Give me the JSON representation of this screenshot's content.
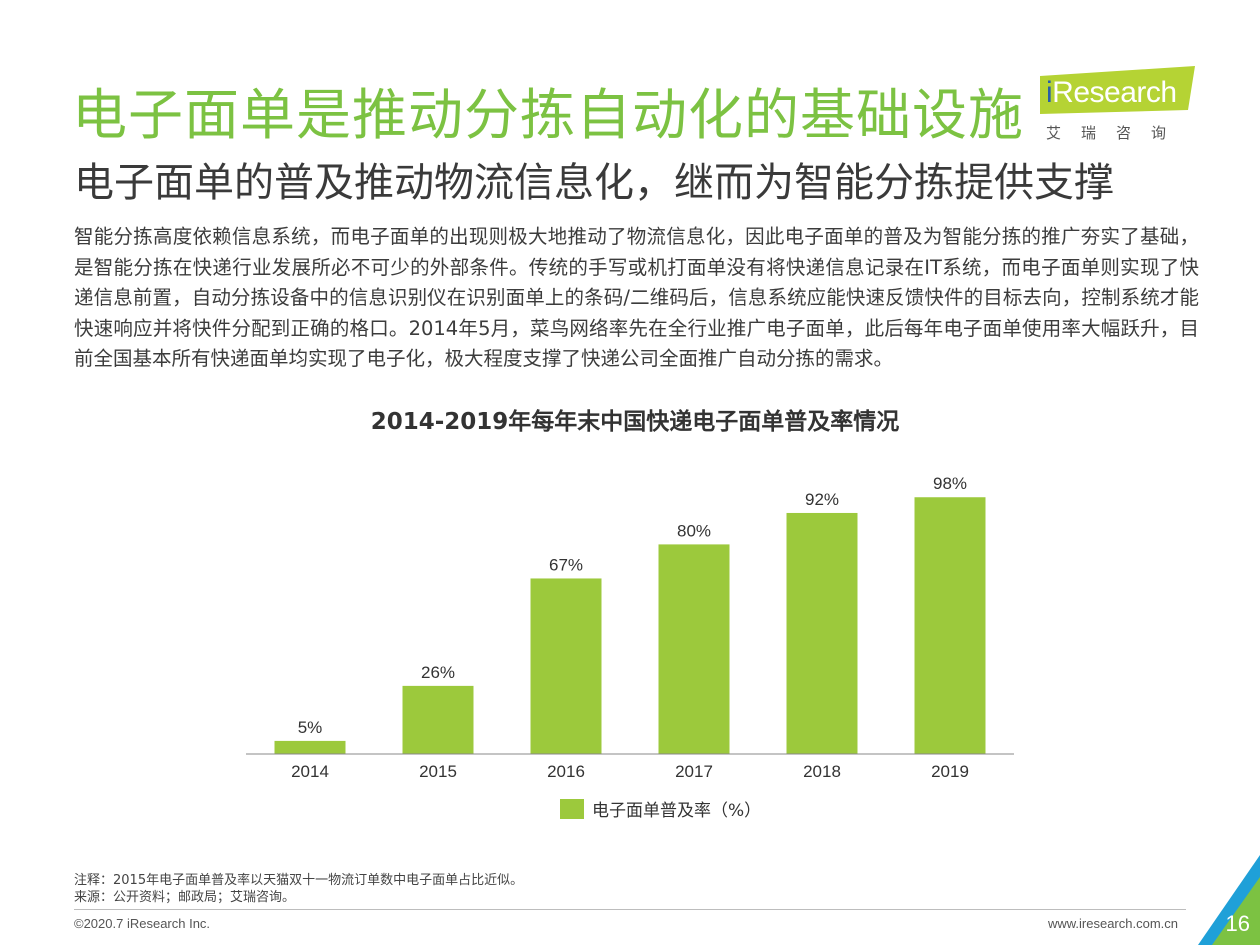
{
  "header": {
    "title": "电子面单是推动分拣自动化的基础设施",
    "subtitle": "电子面单的普及推动物流信息化，继而为智能分拣提供支撑"
  },
  "logo": {
    "brand_i": "i",
    "brand_rest": "Research",
    "brand_cn": "艾瑞咨询",
    "color": "#b5d334"
  },
  "body": {
    "paragraph": "智能分拣高度依赖信息系统，而电子面单的出现则极大地推动了物流信息化，因此电子面单的普及为智能分拣的推广夯实了基础，是智能分拣在快递行业发展所必不可少的外部条件。传统的手写或机打面单没有将快递信息记录在IT系统，而电子面单则实现了快递信息前置，自动分拣设备中的信息识别仪在识别面单上的条码/二维码后，信息系统应能快速反馈快件的目标去向，控制系统才能快速响应并将快件分配到正确的格口。2014年5月，菜鸟网络率先在全行业推广电子面单，此后每年电子面单使用率大幅跃升，目前全国基本所有快递面单均实现了电子化，极大程度支撑了快递公司全面推广自动分拣的需求。"
  },
  "chart_data": {
    "type": "bar",
    "title": "2014-2019年每年末中国快递电子面单普及率情况",
    "categories": [
      "2014",
      "2015",
      "2016",
      "2017",
      "2018",
      "2019"
    ],
    "series": [
      {
        "name": "电子面单普及率（%）",
        "values": [
          5,
          26,
          67,
          80,
          92,
          98
        ]
      }
    ],
    "data_labels": [
      "5%",
      "26%",
      "67%",
      "80%",
      "92%",
      "98%"
    ],
    "ylim": [
      0,
      100
    ],
    "grid": false,
    "legend_position": "bottom",
    "bar_color": "#9cc93c"
  },
  "footer": {
    "note": "注释：2015年电子面单普及率以天猫双十一物流订单数中电子面单占比近似。",
    "source": "来源：公开资料；邮政局；艾瑞咨询。",
    "copyright": "©2020.7 iResearch Inc.",
    "website": "www.iresearch.com.cn",
    "page": "16"
  }
}
